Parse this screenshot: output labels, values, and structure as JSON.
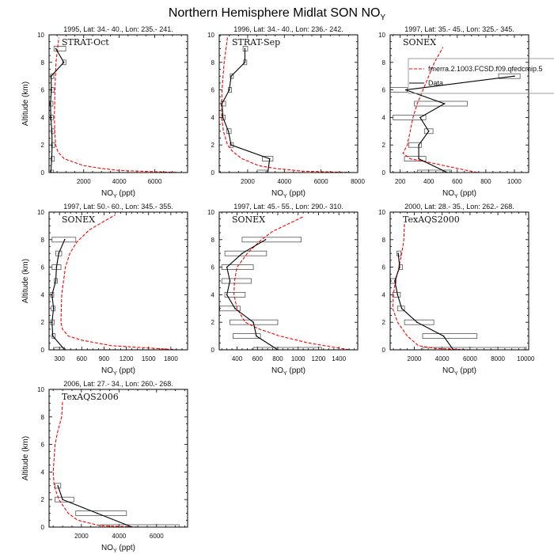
{
  "chart_data": {
    "type": "line",
    "title": "Northern Hemisphere Midlat SON NO",
    "title_sub": "Y",
    "xlabel": "NO",
    "xlabel_sub": "Y",
    "xlabel_unit": " (ppt)",
    "ylabel": "Altitude (km)",
    "ylim": [
      0,
      10
    ],
    "yticks": [
      0,
      2,
      4,
      6,
      8,
      10
    ],
    "colors": {
      "model": "#ff0000",
      "data": "#000000",
      "box": "#555555"
    },
    "legend": {
      "model_label": "fmerra.2.1003.FCSD.f09.qfedcmip.5",
      "data_label": "Data",
      "placement": "panel-3-top-right"
    },
    "panels": [
      {
        "subtitle": "1995, Lat: 34.- 40., Lon: 235.- 241.",
        "campaign": "STRAT-Oct",
        "xlim": [
          50,
          7850
        ],
        "xticks": [
          2000,
          4000,
          6000
        ],
        "show_ylabel": true,
        "data": [
          [
            0,
            150
          ],
          [
            1,
            200
          ],
          [
            2,
            220
          ],
          [
            3,
            210
          ],
          [
            4,
            150
          ],
          [
            5,
            130
          ],
          [
            6,
            180
          ],
          [
            7,
            170
          ],
          [
            8,
            880
          ],
          [
            9,
            430
          ]
        ],
        "boxes": [
          [
            0,
            120,
            260
          ],
          [
            1,
            170,
            330
          ],
          [
            2,
            190,
            280
          ],
          [
            3,
            180,
            280
          ],
          [
            4,
            110,
            220
          ],
          [
            5,
            90,
            190
          ],
          [
            6,
            150,
            220
          ],
          [
            7,
            140,
            260
          ],
          [
            8,
            820,
            960
          ],
          [
            9,
            330,
            990
          ]
        ],
        "model": [
          [
            0,
            7500
          ],
          [
            0.15,
            4000
          ],
          [
            0.3,
            3000
          ],
          [
            0.5,
            2000
          ],
          [
            1,
            900
          ],
          [
            1.5,
            550
          ],
          [
            2,
            420
          ],
          [
            3,
            370
          ],
          [
            4,
            350
          ],
          [
            6,
            380
          ],
          [
            8,
            440
          ],
          [
            9.8,
            600
          ]
        ]
      },
      {
        "subtitle": "1996, Lat: 34.- 40., Lon: 236.- 242.",
        "campaign": "STRAT-Sep",
        "xlim": [
          450,
          8000
        ],
        "xticks": [
          2000,
          4000,
          6000,
          8000
        ],
        "show_ylabel": false,
        "data": [
          [
            0,
            3100
          ],
          [
            1,
            3200
          ],
          [
            2,
            1100
          ],
          [
            3,
            950
          ],
          [
            4,
            650
          ],
          [
            5,
            600
          ],
          [
            6,
            1000
          ],
          [
            7,
            1100
          ],
          [
            8,
            1850
          ],
          [
            9,
            1850
          ]
        ],
        "boxes": [
          [
            0,
            2520,
            3080
          ],
          [
            1,
            2800,
            3380
          ],
          [
            2,
            1050,
            1150
          ],
          [
            3,
            850,
            1100
          ],
          [
            4,
            600,
            700
          ],
          [
            5,
            550,
            800
          ],
          [
            6,
            950,
            1050
          ],
          [
            7,
            1050,
            1150
          ],
          [
            8,
            1780,
            1950
          ],
          [
            9,
            1750,
            2000
          ]
        ],
        "model": [
          [
            0,
            7700
          ],
          [
            0.1,
            5000
          ],
          [
            0.3,
            3500
          ],
          [
            0.5,
            2600
          ],
          [
            1,
            1700
          ],
          [
            1.5,
            1200
          ],
          [
            2,
            900
          ],
          [
            3,
            680
          ],
          [
            4,
            580
          ],
          [
            6,
            600
          ],
          [
            8,
            720
          ],
          [
            9.8,
            900
          ]
        ]
      },
      {
        "subtitle": "1997, Lat: 35.- 45., Lon: 325.- 345.",
        "campaign": "SONEX",
        "xlim": [
          130,
          1100
        ],
        "xticks": [
          200,
          400,
          600,
          800,
          1000
        ],
        "show_ylabel": false,
        "show_legend": true,
        "data": [
          [
            0,
            530
          ],
          [
            1,
            330
          ],
          [
            2,
            330
          ],
          [
            3,
            400
          ],
          [
            4,
            340
          ],
          [
            5,
            510
          ],
          [
            6,
            240
          ],
          [
            7,
            1000
          ]
        ],
        "boxes": [
          [
            0,
            320,
            560
          ],
          [
            1,
            230,
            380
          ],
          [
            2,
            260,
            350
          ],
          [
            3,
            370,
            430
          ],
          [
            4,
            150,
            380
          ],
          [
            5,
            300,
            670
          ],
          [
            6,
            130,
            250
          ],
          [
            7,
            890,
            1040
          ]
        ],
        "model": [
          [
            0,
            740
          ],
          [
            0.3,
            600
          ],
          [
            0.7,
            420
          ],
          [
            1,
            270
          ],
          [
            1.4,
            220
          ],
          [
            2,
            250
          ],
          [
            3,
            270
          ],
          [
            4,
            290
          ],
          [
            5,
            320
          ],
          [
            6,
            360
          ],
          [
            7,
            400
          ],
          [
            8,
            440
          ],
          [
            9.1,
            500
          ]
        ]
      },
      {
        "subtitle": "1997, Lat: 50.- 60., Lon: 345.- 355.",
        "campaign": "SONEX",
        "xlim": [
          160,
          2025
        ],
        "xticks": [
          300,
          600,
          900,
          1200,
          1500,
          1800
        ],
        "show_ylabel": true,
        "data": [
          [
            0,
            370
          ],
          [
            1,
            210
          ],
          [
            2,
            200
          ],
          [
            3,
            220
          ],
          [
            4,
            200
          ],
          [
            5,
            250
          ],
          [
            6,
            260
          ],
          [
            7,
            290
          ],
          [
            8,
            370
          ]
        ],
        "boxes": [
          [
            0,
            220,
            370
          ],
          [
            1,
            200,
            230
          ],
          [
            2,
            180,
            230
          ],
          [
            3,
            190,
            240
          ],
          [
            4,
            180,
            220
          ],
          [
            5,
            230,
            270
          ],
          [
            6,
            200,
            320
          ],
          [
            7,
            250,
            330
          ],
          [
            8,
            200,
            520
          ]
        ],
        "model": [
          [
            0,
            1900
          ],
          [
            0.3,
            1000
          ],
          [
            0.7,
            600
          ],
          [
            1,
            420
          ],
          [
            1.5,
            340
          ],
          [
            2,
            320
          ],
          [
            4,
            330
          ],
          [
            6,
            380
          ],
          [
            7,
            440
          ],
          [
            7.8,
            530
          ],
          [
            8.7,
            700
          ],
          [
            9.8,
            1050
          ]
        ]
      },
      {
        "subtitle": "1997, Lat: 45.- 55., Lon: 290.- 310.",
        "campaign": "SONEX",
        "xlim": [
          225,
          1585
        ],
        "xticks": [
          400,
          600,
          800,
          1000,
          1200,
          1400
        ],
        "show_ylabel": false,
        "data": [
          [
            0,
            800
          ],
          [
            1,
            590
          ],
          [
            2,
            560
          ],
          [
            3,
            380
          ],
          [
            4,
            300
          ],
          [
            5,
            330
          ],
          [
            6,
            300
          ],
          [
            7,
            450
          ],
          [
            8,
            680
          ]
        ],
        "boxes": [
          [
            0,
            560,
            1230
          ],
          [
            1,
            360,
            630
          ],
          [
            2,
            330,
            800
          ],
          [
            3,
            230,
            430
          ],
          [
            4,
            280,
            480
          ],
          [
            5,
            250,
            540
          ],
          [
            6,
            250,
            560
          ],
          [
            7,
            280,
            690
          ],
          [
            8,
            450,
            1030
          ]
        ],
        "model": [
          [
            0,
            1500
          ],
          [
            0.5,
            1100
          ],
          [
            1,
            820
          ],
          [
            1.5,
            620
          ],
          [
            2,
            480
          ],
          [
            3,
            400
          ],
          [
            4,
            370
          ],
          [
            5,
            375
          ],
          [
            6,
            400
          ],
          [
            7,
            500
          ],
          [
            8,
            640
          ],
          [
            8.6,
            750
          ],
          [
            9.7,
            1060
          ]
        ]
      },
      {
        "subtitle": "2000, Lat: 28.- 35., Lon: 262.- 268.",
        "campaign": "TexAQS2000",
        "xlim": [
          270,
          10210
        ],
        "xticks": [
          2000,
          4000,
          6000,
          8000,
          10000
        ],
        "show_ylabel": false,
        "data": [
          [
            0,
            4800
          ],
          [
            1,
            4100
          ],
          [
            2,
            2200
          ],
          [
            3,
            1100
          ],
          [
            4,
            800
          ],
          [
            5,
            600
          ],
          [
            6,
            950
          ],
          [
            7,
            850
          ]
        ],
        "boxes": [
          [
            0,
            2600,
            9900
          ],
          [
            1,
            2600,
            6500
          ],
          [
            2,
            1300,
            3400
          ],
          [
            3,
            800,
            1300
          ],
          [
            4,
            450,
            1000
          ],
          [
            5,
            300,
            700
          ],
          [
            6,
            900,
            1150
          ],
          [
            7,
            750,
            1050
          ]
        ],
        "model": [
          [
            0,
            6000
          ],
          [
            0.1,
            3500
          ],
          [
            0.3,
            2300
          ],
          [
            1,
            1500
          ],
          [
            2,
            800
          ],
          [
            3,
            450
          ],
          [
            4,
            500
          ],
          [
            5,
            650
          ],
          [
            6,
            900
          ],
          [
            7,
            1100
          ],
          [
            8,
            1250
          ],
          [
            9.3,
            1300
          ]
        ]
      },
      {
        "subtitle": "2006, Lat: 27.- 34., Lon: 260.- 268.",
        "campaign": "TexAQS2006",
        "xlim": [
          280,
          7650
        ],
        "xticks": [
          2000,
          4000,
          6000
        ],
        "show_ylabel": true,
        "data": [
          [
            0,
            4700
          ],
          [
            1,
            2850
          ],
          [
            2,
            1000
          ],
          [
            3,
            750
          ]
        ],
        "boxes": [
          [
            0,
            3000,
            7200
          ],
          [
            1,
            1700,
            4400
          ],
          [
            2,
            600,
            1600
          ],
          [
            3,
            600,
            900
          ]
        ],
        "model": [
          [
            0,
            5000
          ],
          [
            0.1,
            3000
          ],
          [
            0.5,
            1800
          ],
          [
            1,
            1300
          ],
          [
            2,
            800
          ],
          [
            3,
            550
          ],
          [
            4,
            500
          ],
          [
            6,
            600
          ],
          [
            7,
            750
          ],
          [
            8,
            950
          ],
          [
            9.2,
            1000
          ]
        ]
      }
    ]
  }
}
